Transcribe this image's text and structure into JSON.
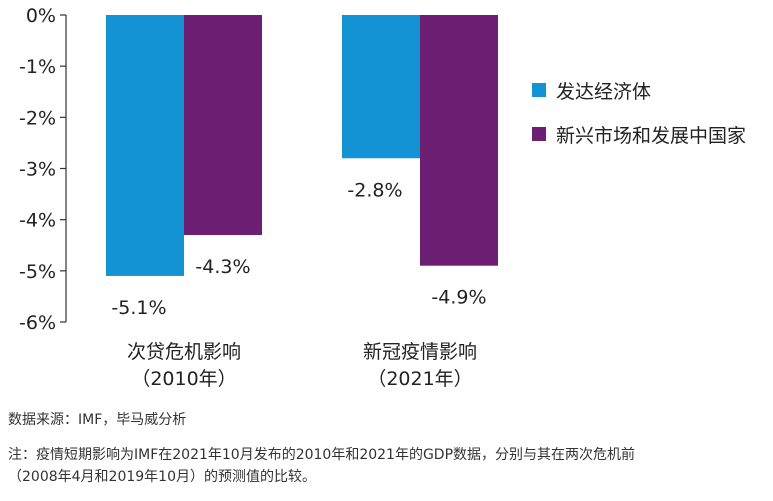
{
  "chart_data": {
    "type": "bar",
    "categories": [
      {
        "line1": "次贷危机影响",
        "line2": "（2010年）"
      },
      {
        "line1": "新冠疫情影响",
        "line2": "（2021年）"
      }
    ],
    "series": [
      {
        "name": "发达经济体",
        "color": "#1493d4",
        "values": [
          -5.1,
          -2.8
        ],
        "labels": [
          "-5.1%",
          "-2.8%"
        ]
      },
      {
        "name": "新兴市场和发展中国家",
        "color": "#6d1f74",
        "values": [
          -4.3,
          -4.9
        ],
        "labels": [
          "-4.3%",
          "-4.9%"
        ]
      }
    ],
    "y_ticks": [
      {
        "value": 0,
        "label": "0%"
      },
      {
        "value": -1,
        "label": "-1%"
      },
      {
        "value": -2,
        "label": "-2%"
      },
      {
        "value": -3,
        "label": "-3%"
      },
      {
        "value": -4,
        "label": "-4%"
      },
      {
        "value": -5,
        "label": "-5%"
      },
      {
        "value": -6,
        "label": "-6%"
      }
    ],
    "ylim": [
      -6,
      0
    ],
    "grid": false,
    "legend_position": "right"
  },
  "footer": {
    "source": "数据来源：IMF，毕马威分析",
    "note_line1": "注：疫情短期影响为IMF在2021年10月发布的2010年和2021年的GDP数据，分别与其在两次危机前",
    "note_line2": "（2008年4月和2019年10月）的预测值的比较。"
  }
}
